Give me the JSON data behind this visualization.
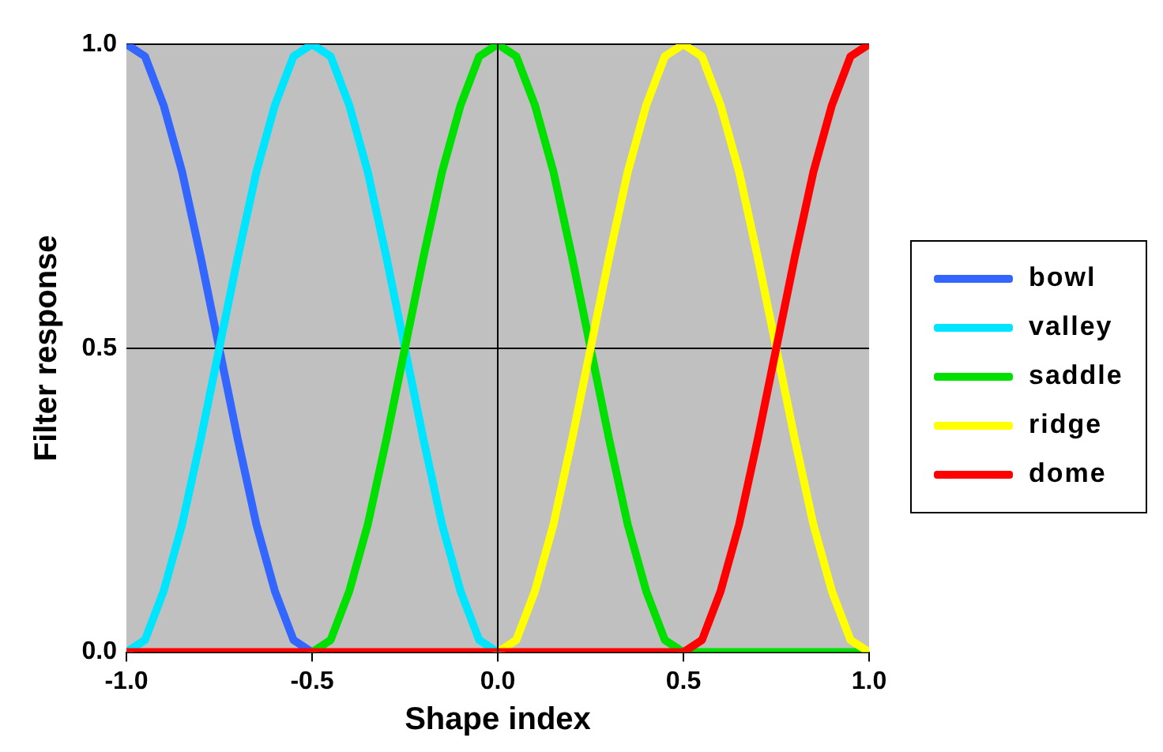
{
  "chart_data": {
    "type": "line",
    "xlabel": "Shape index",
    "ylabel": "Filter response",
    "x": [
      -1,
      -0.95,
      -0.9,
      -0.85,
      -0.8,
      -0.75,
      -0.7,
      -0.65,
      -0.6,
      -0.55,
      -0.5,
      -0.45,
      -0.4,
      -0.35,
      -0.3,
      -0.25,
      -0.2,
      -0.15,
      -0.1,
      -0.05,
      0,
      0.05,
      0.1,
      0.15,
      0.2,
      0.25,
      0.3,
      0.35,
      0.4,
      0.45,
      0.5,
      0.55,
      0.6,
      0.65,
      0.7,
      0.75,
      0.8,
      0.85,
      0.9,
      0.95,
      1
    ],
    "series": [
      {
        "name": "bowl",
        "color": "#3366ff",
        "values": [
          1,
          0.98,
          0.9,
          0.79,
          0.65,
          0.5,
          0.35,
          0.21,
          0.1,
          0.02,
          0,
          null,
          null,
          null,
          null,
          null,
          null,
          null,
          null,
          null,
          null,
          null,
          null,
          null,
          null,
          null,
          null,
          null,
          null,
          null,
          null,
          null,
          null,
          null,
          null,
          null,
          null,
          null,
          null,
          null,
          null
        ]
      },
      {
        "name": "valley",
        "color": "#00e5ff",
        "values": [
          0,
          0.02,
          0.1,
          0.21,
          0.35,
          0.5,
          0.65,
          0.79,
          0.9,
          0.98,
          1,
          0.98,
          0.9,
          0.79,
          0.65,
          0.5,
          0.35,
          0.21,
          0.1,
          0.02,
          0,
          null,
          null,
          null,
          null,
          null,
          null,
          null,
          null,
          null,
          null,
          null,
          null,
          null,
          null,
          null,
          null,
          null,
          null,
          null,
          null
        ]
      },
      {
        "name": "saddle",
        "color": "#00e000",
        "values": [
          null,
          null,
          null,
          null,
          null,
          null,
          null,
          null,
          null,
          null,
          0,
          0.02,
          0.1,
          0.21,
          0.35,
          0.5,
          0.65,
          0.79,
          0.9,
          0.98,
          1,
          0.98,
          0.9,
          0.79,
          0.65,
          0.5,
          0.35,
          0.21,
          0.1,
          0.02,
          0,
          0,
          0,
          0,
          0,
          0,
          0,
          0,
          0,
          0,
          0
        ]
      },
      {
        "name": "ridge",
        "color": "#ffff00",
        "values": [
          null,
          null,
          null,
          null,
          null,
          null,
          null,
          null,
          null,
          null,
          null,
          null,
          null,
          null,
          null,
          null,
          null,
          null,
          null,
          null,
          0,
          0.02,
          0.1,
          0.21,
          0.35,
          0.5,
          0.65,
          0.79,
          0.9,
          0.98,
          1,
          0.98,
          0.9,
          0.79,
          0.65,
          0.5,
          0.35,
          0.21,
          0.1,
          0.02,
          0
        ]
      },
      {
        "name": "dome",
        "color": "#ff0000",
        "values": [
          0,
          0,
          0,
          0,
          0,
          0,
          0,
          0,
          0,
          0,
          0,
          0,
          0,
          0,
          0,
          0,
          0,
          0,
          0,
          0,
          0,
          0,
          0,
          0,
          0,
          0,
          0,
          0,
          0,
          0,
          0,
          0.02,
          0.1,
          0.21,
          0.35,
          0.5,
          0.65,
          0.79,
          0.9,
          0.98,
          1
        ]
      }
    ],
    "xlim": [
      -1,
      1
    ],
    "xticks": [
      {
        "value": -1,
        "label": "-1.0"
      },
      {
        "value": -0.5,
        "label": "-0.5"
      },
      {
        "value": 0,
        "label": "0.0"
      },
      {
        "value": 0.5,
        "label": "0.5"
      },
      {
        "value": 1,
        "label": "1.0"
      }
    ],
    "ylim": [
      0,
      1
    ],
    "yticks": [
      {
        "value": 0,
        "label": "0.0"
      },
      {
        "value": 0.5,
        "label": "0.5"
      },
      {
        "value": 1,
        "label": "1.0"
      }
    ],
    "ref_lines": [
      {
        "axis": "x",
        "value": 0,
        "color": "#000000"
      }
    ],
    "grid": "y",
    "legend": "right",
    "marker": "none",
    "line_style": "solid"
  }
}
